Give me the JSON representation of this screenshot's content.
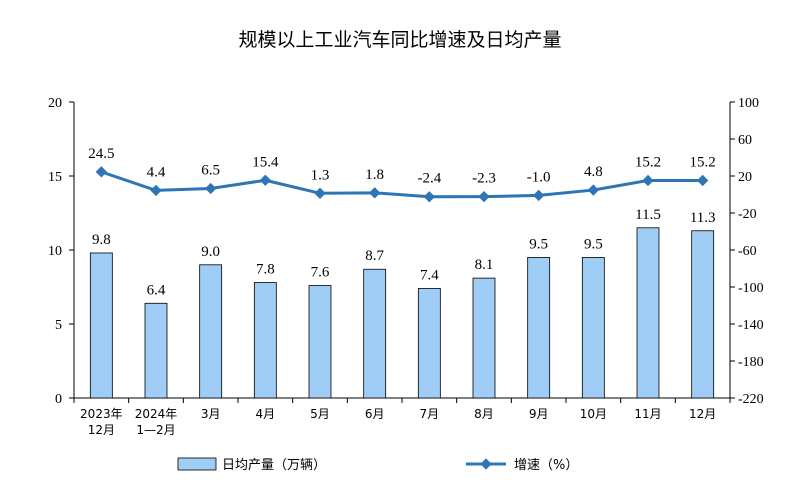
{
  "chart_data": {
    "type": "bar",
    "title": "规模以上工业汽车同比增速及日均产量",
    "categories": [
      [
        "2023年",
        "12月"
      ],
      [
        "2024年",
        "1—2月"
      ],
      [
        "3月"
      ],
      [
        "4月"
      ],
      [
        "5月"
      ],
      [
        "6月"
      ],
      [
        "7月"
      ],
      [
        "8月"
      ],
      [
        "9月"
      ],
      [
        "10月"
      ],
      [
        "11月"
      ],
      [
        "12月"
      ]
    ],
    "series": [
      {
        "name": "日均产量（万辆）",
        "type": "bar",
        "axis": "left",
        "values": [
          9.8,
          6.4,
          9.0,
          7.8,
          7.6,
          8.7,
          7.4,
          8.1,
          9.5,
          9.5,
          11.5,
          11.3
        ],
        "labels": [
          "9.8",
          "6.4",
          "9.0",
          "7.8",
          "7.6",
          "8.7",
          "7.4",
          "8.1",
          "9.5",
          "9.5",
          "11.5",
          "11.3"
        ]
      },
      {
        "name": "增速（%）",
        "type": "line",
        "axis": "right",
        "values": [
          24.5,
          4.4,
          6.5,
          15.4,
          1.3,
          1.8,
          -2.4,
          -2.3,
          -1.0,
          4.8,
          15.2,
          15.2
        ],
        "labels": [
          "24.5",
          "4.4",
          "6.5",
          "15.4",
          "1.3",
          "1.8",
          "-2.4",
          "-2.3",
          "-1.0",
          "4.8",
          "15.2",
          "15.2"
        ]
      }
    ],
    "y_left": {
      "lim": [
        0,
        20
      ],
      "ticks": [
        "0",
        "5",
        "10",
        "15",
        "20"
      ]
    },
    "y_right": {
      "lim": [
        -220,
        100
      ],
      "ticks": [
        "-220",
        "-180",
        "-140",
        "-100",
        "-60",
        "-20",
        "20",
        "60",
        "100"
      ]
    },
    "legend_position": "bottom",
    "grid": false,
    "colors": {
      "bar_fill": "#9fcdf5",
      "bar_stroke": "#000000",
      "line": "#2e75b6"
    }
  }
}
